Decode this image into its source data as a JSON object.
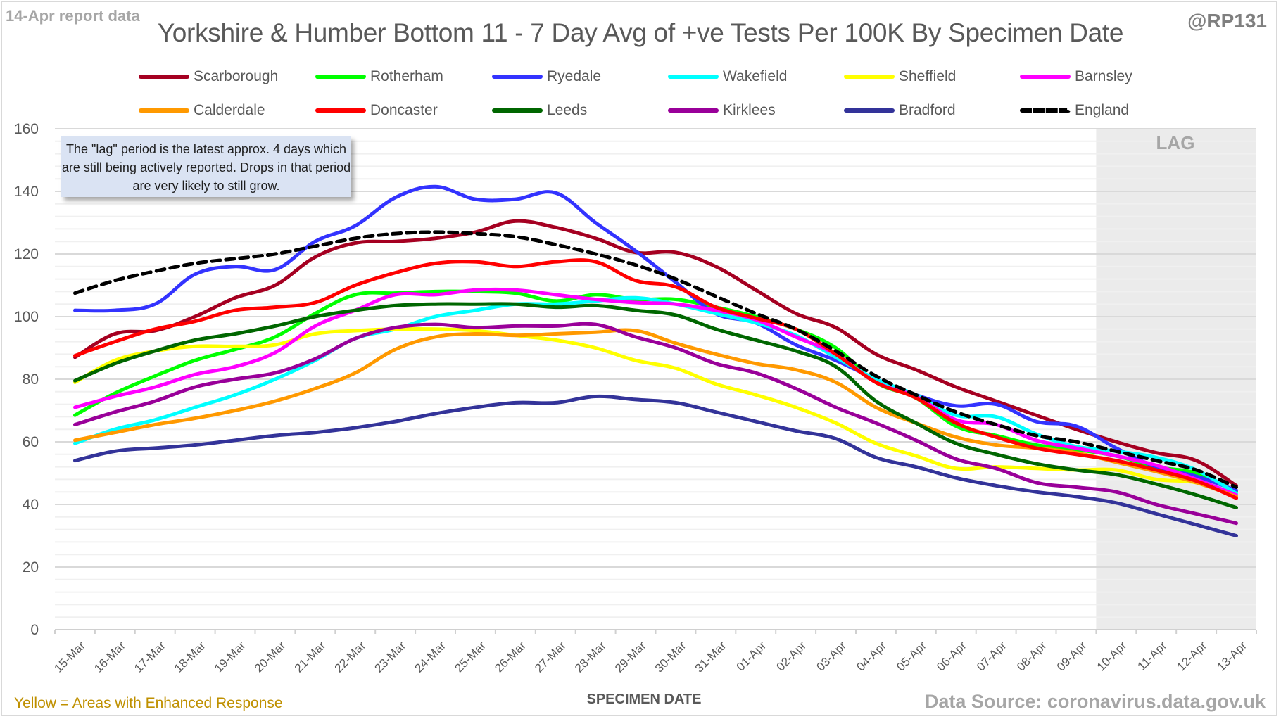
{
  "header": {
    "report_date": "14-Apr report data",
    "author": "@RP131"
  },
  "footer": {
    "note": "Yellow = Areas with Enhanced Response",
    "source": "Data Source: coronavirus.data.gov.uk"
  },
  "callout": {
    "text": "The \"lag\" period is the latest approx. 4 days which are still being actively reported.  Drops in that period are very likely to still grow."
  },
  "chart_data": {
    "type": "line",
    "title": "Yorkshire & Humber Bottom 11 - 7 Day Avg of +ve Tests Per 100K By Specimen Date",
    "xlabel": "SPECIMEN DATE",
    "ylabel": "",
    "ylim": [
      0,
      160
    ],
    "yticks": [
      0,
      20,
      40,
      60,
      80,
      100,
      120,
      140,
      160
    ],
    "y_minor_step": 4,
    "grid": true,
    "legend_position": "top",
    "shaded_region": {
      "label": "LAG",
      "from": "10-Apr",
      "to": "13-Apr",
      "color": "#ebebeb"
    },
    "x": [
      "15-Mar",
      "16-Mar",
      "17-Mar",
      "18-Mar",
      "19-Mar",
      "20-Mar",
      "21-Mar",
      "22-Mar",
      "23-Mar",
      "24-Mar",
      "25-Mar",
      "26-Mar",
      "27-Mar",
      "28-Mar",
      "29-Mar",
      "30-Mar",
      "31-Mar",
      "01-Apr",
      "02-Apr",
      "03-Apr",
      "04-Apr",
      "05-Apr",
      "06-Apr",
      "07-Apr",
      "08-Apr",
      "09-Apr",
      "10-Apr",
      "11-Apr",
      "12-Apr",
      "13-Apr"
    ],
    "series": [
      {
        "name": "Scarborough",
        "color": "#a50021",
        "dashed": false,
        "values": [
          87,
          94.5,
          95.5,
          100,
          106,
          110,
          119,
          123.5,
          124,
          125,
          127,
          130.5,
          128.5,
          125,
          120.5,
          120.5,
          116,
          108.5,
          101,
          96.5,
          88,
          83,
          77.5,
          73,
          68.5,
          64,
          60,
          56.5,
          54,
          46
        ]
      },
      {
        "name": "Rotherham",
        "color": "#00ff00",
        "dashed": false,
        "values": [
          68.5,
          75.5,
          81,
          86,
          89.5,
          93.5,
          101,
          107,
          107.5,
          108,
          108,
          107.5,
          105,
          107,
          105.5,
          105.5,
          103,
          100,
          96,
          90,
          79,
          74,
          65,
          62,
          59,
          57.5,
          55.5,
          52,
          50,
          44
        ]
      },
      {
        "name": "Ryedale",
        "color": "#3333ff",
        "dashed": false,
        "values": [
          102,
          102,
          104,
          113.5,
          116,
          115,
          124,
          129,
          138,
          141.5,
          137.5,
          137.5,
          139.5,
          130,
          121,
          111,
          101,
          98,
          91,
          86,
          80,
          75,
          71.5,
          72,
          66.5,
          65,
          58,
          52,
          49,
          44.5
        ]
      },
      {
        "name": "Wakefield",
        "color": "#00ffff",
        "dashed": false,
        "values": [
          59.5,
          64,
          67,
          71,
          75,
          80,
          86,
          93,
          96,
          100,
          102,
          104,
          104,
          105,
          106,
          104,
          101,
          98,
          94,
          87,
          80,
          75,
          68.5,
          68,
          62.5,
          58.5,
          57,
          55,
          51,
          43.5
        ]
      },
      {
        "name": "Sheffield",
        "color": "#ffff00",
        "dashed": false,
        "values": [
          79,
          86,
          89,
          90.5,
          90.5,
          91,
          94.5,
          95.5,
          96,
          96,
          95.5,
          94,
          92.5,
          90,
          86,
          83.5,
          78.5,
          75,
          71,
          66,
          59.5,
          55.5,
          51.5,
          52,
          51.5,
          51,
          51,
          48,
          47,
          43
        ]
      },
      {
        "name": "Barnsley",
        "color": "#ff00ff",
        "dashed": false,
        "values": [
          71,
          74.5,
          77.5,
          81.5,
          84,
          88.5,
          97,
          102,
          107,
          107,
          108.5,
          108.5,
          107,
          105.5,
          104.5,
          104,
          102,
          99,
          93.5,
          88,
          79,
          74.5,
          67,
          65.5,
          60.5,
          58,
          55.5,
          52.5,
          48,
          43
        ]
      },
      {
        "name": "Calderdale",
        "color": "#ff9900",
        "dashed": false,
        "values": [
          60.5,
          63,
          65.5,
          67.5,
          70,
          73,
          77,
          82,
          89.5,
          93.5,
          94.5,
          94,
          94.5,
          95,
          95.5,
          91.5,
          88,
          85,
          83,
          79,
          71,
          66,
          61.5,
          59,
          58,
          56.5,
          53.5,
          50.5,
          47,
          42.5
        ]
      },
      {
        "name": "Doncaster",
        "color": "#ff0000",
        "dashed": false,
        "values": [
          87.5,
          92,
          96,
          98.5,
          102,
          103,
          104.5,
          110,
          114,
          117,
          117.5,
          116,
          117.5,
          117.5,
          111.5,
          109.5,
          103,
          99.5,
          96,
          88,
          79,
          74,
          66,
          61.5,
          58,
          56,
          54,
          51,
          47.5,
          42
        ]
      },
      {
        "name": "Leeds",
        "color": "#006600",
        "dashed": false,
        "values": [
          79.5,
          85,
          89,
          92.5,
          94.5,
          97,
          100,
          102,
          103.5,
          104,
          104,
          104,
          103,
          103.5,
          102,
          100.5,
          96,
          92.5,
          89,
          84,
          73,
          66,
          59.5,
          56,
          53,
          51,
          49.5,
          46.5,
          43,
          39
        ]
      },
      {
        "name": "Kirklees",
        "color": "#990099",
        "dashed": false,
        "values": [
          65.5,
          69.5,
          73,
          77.5,
          80,
          82,
          86.5,
          93,
          96.5,
          97.5,
          96.5,
          97,
          97,
          97.5,
          93.5,
          90,
          85,
          82,
          77,
          71,
          66,
          60.5,
          54.5,
          51.5,
          47,
          45.5,
          44,
          40,
          37,
          34
        ]
      },
      {
        "name": "Bradford",
        "color": "#333399",
        "dashed": false,
        "values": [
          54,
          57,
          58,
          59,
          60.5,
          62,
          63,
          64.5,
          66.5,
          69,
          71,
          72.5,
          72.5,
          74.5,
          73.5,
          72.5,
          69.5,
          66.5,
          63.5,
          61,
          55,
          52,
          48.5,
          46,
          44,
          42.5,
          40.5,
          37,
          33.5,
          30
        ]
      },
      {
        "name": "England",
        "color": "#000000",
        "dashed": true,
        "values": [
          107.5,
          111.5,
          114.5,
          117,
          118.5,
          120,
          122.5,
          125,
          126.5,
          127,
          126.5,
          125.5,
          123,
          120,
          116.5,
          112,
          106.5,
          101,
          96,
          89,
          81,
          75,
          69.5,
          65.5,
          62,
          60,
          57,
          54,
          51,
          45.5
        ]
      }
    ]
  }
}
